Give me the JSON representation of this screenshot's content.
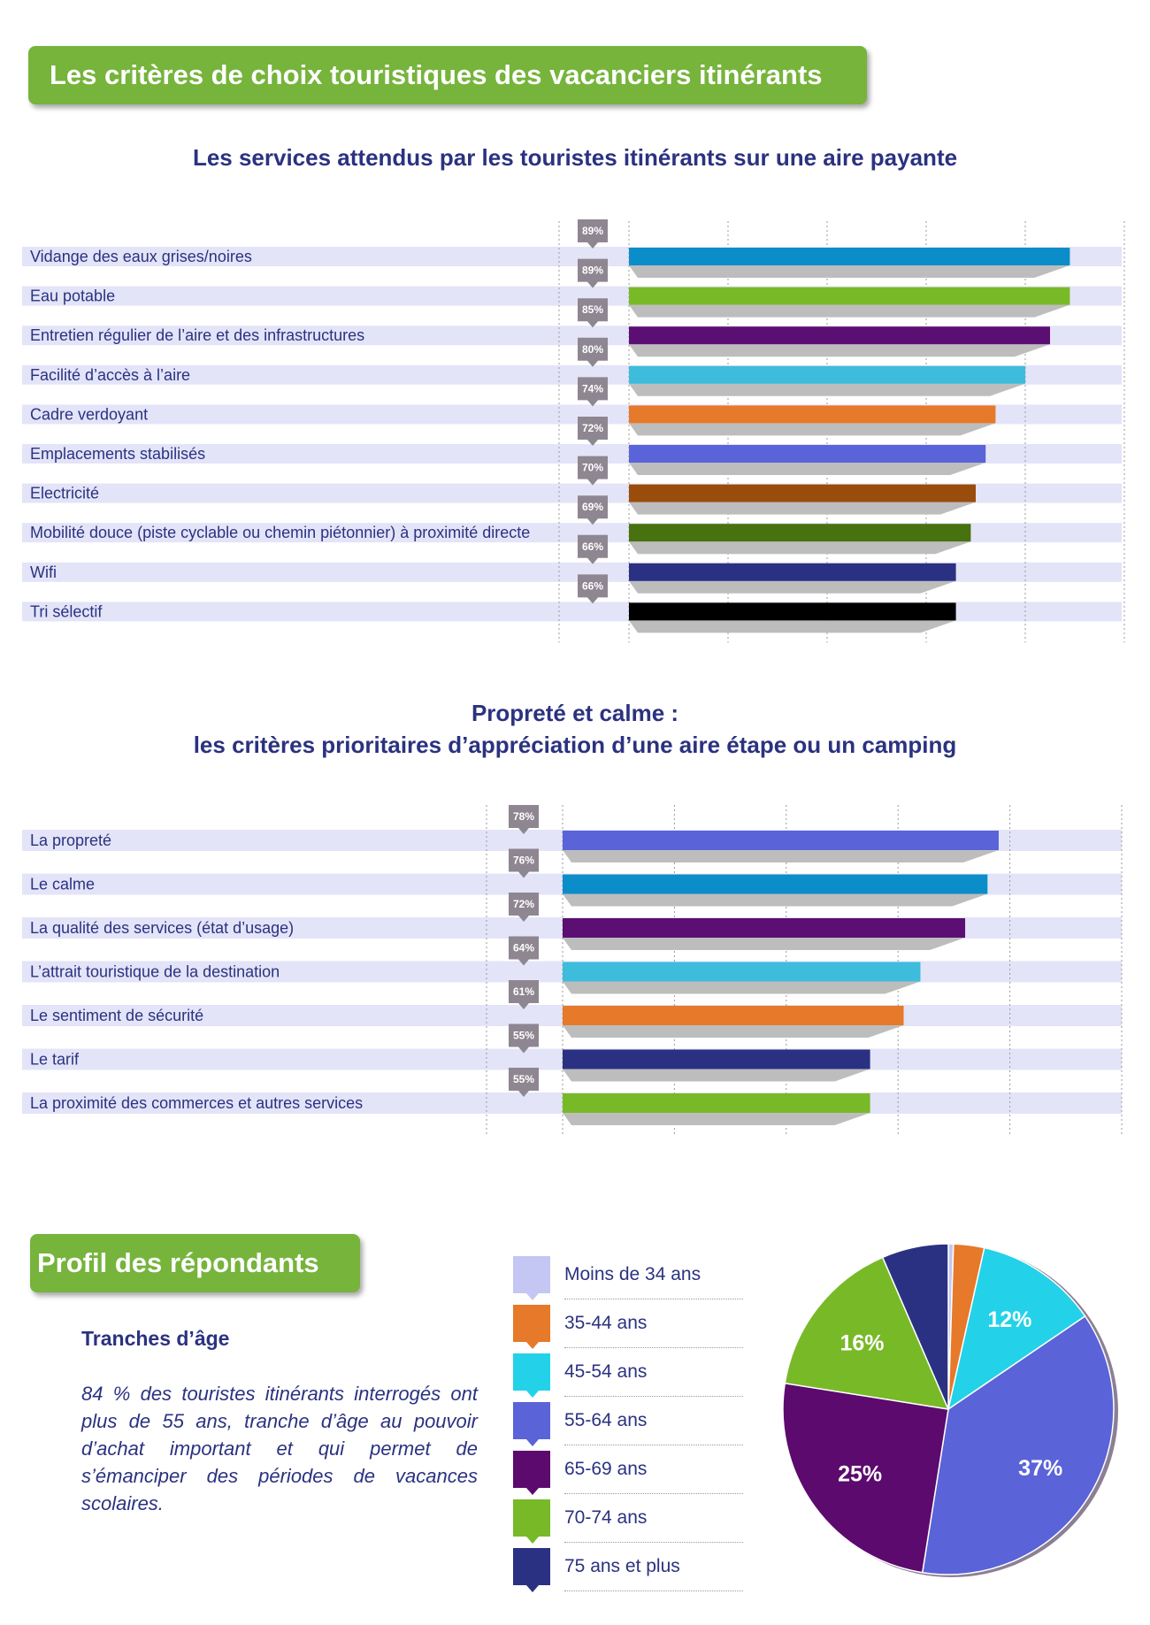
{
  "header": {
    "title": "Les critères de choix touristiques des vacanciers itinérants"
  },
  "chart_data": [
    {
      "type": "bar",
      "title": "Les services attendus par les touristes itinérants sur une aire payante",
      "categories": [
        "Vidange des eaux grises/noires",
        "Eau potable",
        "Entretien régulier de l’aire et des infrastructures",
        "Facilité d’accès à l’aire",
        "Cadre verdoyant",
        "Emplacements stabilisés",
        "Electricité",
        "Mobilité douce (piste cyclable ou chemin piétonnier) à proximité directe",
        "Wifi",
        "Tri sélectif"
      ],
      "values": [
        89,
        89,
        85,
        80,
        74,
        72,
        70,
        69,
        66,
        66
      ],
      "value_labels": [
        "89%",
        "89%",
        "85%",
        "80%",
        "74%",
        "72%",
        "70%",
        "69%",
        "66%",
        "66%"
      ],
      "colors": [
        "#0a8dc9",
        "#78b928",
        "#5c0f73",
        "#3dbcdb",
        "#e6792a",
        "#5a63d8",
        "#9a4c0d",
        "#47720f",
        "#2b3182",
        "#000000"
      ],
      "xlim": [
        0,
        100
      ],
      "grid": true
    },
    {
      "type": "bar",
      "title": "Propreté et calme :",
      "subtitle": "les critères prioritaires d’appréciation d’une aire étape ou un camping",
      "categories": [
        "La propreté",
        "Le calme",
        "La qualité des services (état d’usage)",
        "L’attrait touristique de la destination",
        "Le sentiment de sécurité",
        "Le tarif",
        "La proximité des commerces et autres services"
      ],
      "values": [
        78,
        76,
        72,
        64,
        61,
        55,
        55
      ],
      "value_labels": [
        "78%",
        "76%",
        "72%",
        "64%",
        "61%",
        "55%",
        "55%"
      ],
      "colors": [
        "#5a63d8",
        "#0a8dc9",
        "#5c0f73",
        "#3dbcdb",
        "#e6792a",
        "#2b3182",
        "#78b928"
      ],
      "xlim": [
        0,
        100
      ],
      "grid": true
    },
    {
      "type": "pie",
      "title": "",
      "slices": [
        {
          "label": "Moins de 34 ans",
          "value": 0.5,
          "color": "#c4c6f3",
          "value_label": ""
        },
        {
          "label": "35-44 ans",
          "value": 3,
          "color": "#e6792a",
          "value_label": ""
        },
        {
          "label": "45-54 ans",
          "value": 12,
          "color": "#23d2e8",
          "value_label": "12%"
        },
        {
          "label": "55-64 ans",
          "value": 37,
          "color": "#5a63d8",
          "value_label": "37%"
        },
        {
          "label": "65-69 ans",
          "value": 25,
          "color": "#5c0a6e",
          "value_label": "25%"
        },
        {
          "label": "70-74 ans",
          "value": 16,
          "color": "#78b928",
          "value_label": "16%"
        },
        {
          "label": "75 ans et plus",
          "value": 6.5,
          "color": "#2b3182",
          "value_label": ""
        }
      ]
    }
  ],
  "profile": {
    "title": "Profil des répondants",
    "age_heading": "Tranches d’âge",
    "age_text": "84 % des touristes itinérants interrogés ont plus de 55 ans, tranche d’âge au pouvoir d’achat important et qui permet de s’émanciper des périodes de vacances scolaires."
  }
}
